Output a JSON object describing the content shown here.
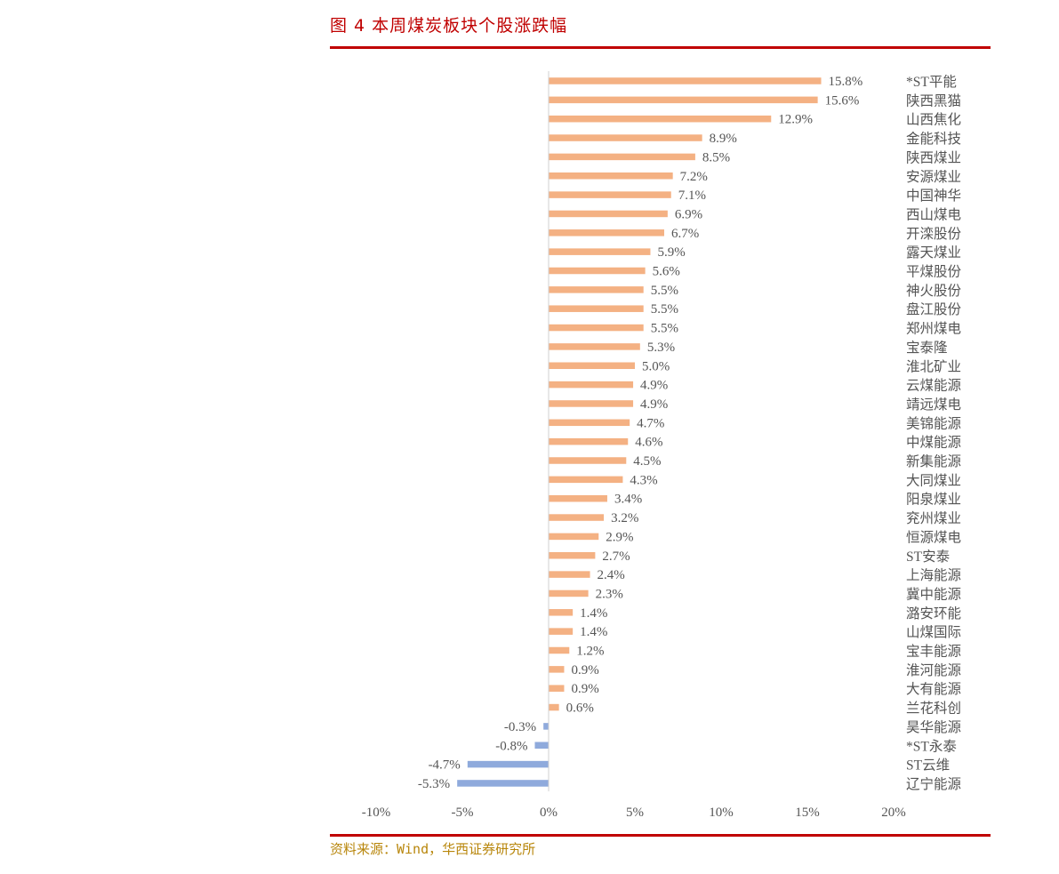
{
  "header": {
    "title": "图 4  本周煤炭板块个股涨跌幅"
  },
  "footer": {
    "source": "资料来源：Wind，华西证券研究所"
  },
  "colors": {
    "positive": "#f4b183",
    "negative": "#8faadc",
    "accent": "#c00000",
    "source_text": "#b8860b"
  },
  "chart_data": {
    "type": "bar",
    "orientation": "horizontal",
    "title": "",
    "xlabel": "",
    "ylabel": "",
    "xlim": [
      -10,
      20
    ],
    "xticks": [
      -10,
      -5,
      0,
      5,
      10,
      15,
      20
    ],
    "xtick_labels": [
      "-10%",
      "-5%",
      "0%",
      "5%",
      "10%",
      "15%",
      "20%"
    ],
    "grid": false,
    "categories": [
      "*ST平能",
      "陕西黑猫",
      "山西焦化",
      "金能科技",
      "陕西煤业",
      "安源煤业",
      "中国神华",
      "西山煤电",
      "开滦股份",
      "露天煤业",
      "平煤股份",
      "神火股份",
      "盘江股份",
      "郑州煤电",
      "宝泰隆",
      "淮北矿业",
      "云煤能源",
      "靖远煤电",
      "美锦能源",
      "中煤能源",
      "新集能源",
      "大同煤业",
      "阳泉煤业",
      "兖州煤业",
      "恒源煤电",
      "ST安泰",
      "上海能源",
      "冀中能源",
      "潞安环能",
      "山煤国际",
      "宝丰能源",
      "淮河能源",
      "大有能源",
      "兰花科创",
      "昊华能源",
      "*ST永泰",
      "ST云维",
      "辽宁能源"
    ],
    "values": [
      15.8,
      15.6,
      12.9,
      8.9,
      8.5,
      7.2,
      7.1,
      6.9,
      6.7,
      5.9,
      5.6,
      5.5,
      5.5,
      5.5,
      5.3,
      5.0,
      4.9,
      4.9,
      4.7,
      4.6,
      4.5,
      4.3,
      3.4,
      3.2,
      2.9,
      2.7,
      2.4,
      2.3,
      1.4,
      1.4,
      1.2,
      0.9,
      0.9,
      0.6,
      -0.3,
      -0.8,
      -4.7,
      -5.3
    ],
    "value_labels": [
      "15.8%",
      "15.6%",
      "12.9%",
      "8.9%",
      "8.5%",
      "7.2%",
      "7.1%",
      "6.9%",
      "6.7%",
      "5.9%",
      "5.6%",
      "5.5%",
      "5.5%",
      "5.5%",
      "5.3%",
      "5.0%",
      "4.9%",
      "4.9%",
      "4.7%",
      "4.6%",
      "4.5%",
      "4.3%",
      "3.4%",
      "3.2%",
      "2.9%",
      "2.7%",
      "2.4%",
      "2.3%",
      "1.4%",
      "1.4%",
      "1.2%",
      "0.9%",
      "0.9%",
      "0.6%",
      "-0.3%",
      "-0.8%",
      "-4.7%",
      "-5.3%"
    ]
  }
}
